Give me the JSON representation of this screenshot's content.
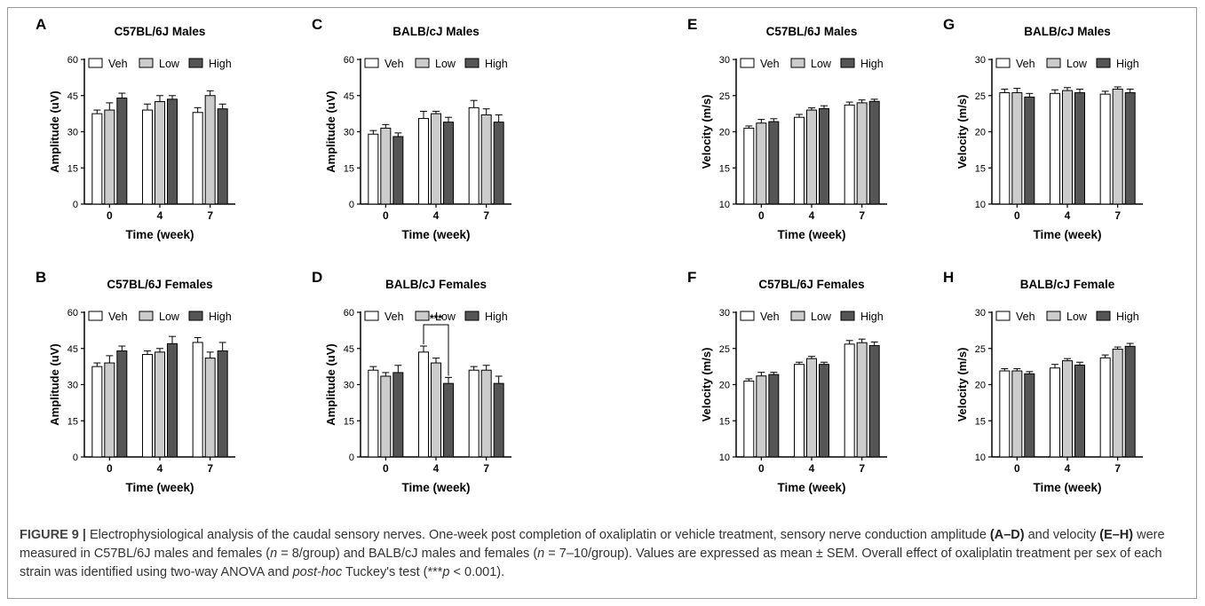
{
  "caption": {
    "label": "FIGURE 9 |",
    "text_1": " Electrophysiological analysis of the caudal sensory nerves. One-week post completion of oxaliplatin or vehicle treatment, sensory nerve conduction amplitude ",
    "range_1": "(A–D)",
    "text_2": " and velocity ",
    "range_2": "(E–H)",
    "text_3": " were measured in C57BL/6J males and females (",
    "n_1": "n",
    "text_4": " = 8/group) and BALB/cJ males and females (",
    "n_2": "n",
    "text_5": " = 7–10/group). Values are expressed as mean ± SEM. Overall effect of oxaliplatin treatment per sex of each strain was identified using two-way ANOVA and ",
    "posthoc": "post-hoc",
    "text_6": " Tuckey's test (***",
    "p": "p",
    "text_7": " < 0.001)."
  },
  "colors": {
    "Veh": "#ffffff",
    "Low": "#cccccc",
    "High": "#555555",
    "axis": "#000000"
  },
  "chart_data": [
    {
      "panel": "A",
      "type": "bar",
      "title": "C57BL/6J Males",
      "ylabel": "Amplitude (uV)",
      "xlabel": "Time (week)",
      "categories": [
        "0",
        "4",
        "7"
      ],
      "ylim": [
        0,
        60
      ],
      "yticks": [
        0,
        15,
        30,
        45,
        60
      ],
      "legend": "top",
      "series": [
        {
          "name": "Veh",
          "values": [
            37.5,
            39.0,
            38.0
          ],
          "errors": [
            1.5,
            2.5,
            2.0
          ]
        },
        {
          "name": "Low",
          "values": [
            39.0,
            42.5,
            45.0
          ],
          "errors": [
            3.0,
            2.5,
            2.0
          ]
        },
        {
          "name": "High",
          "values": [
            44.0,
            43.5,
            39.5
          ],
          "errors": [
            2.0,
            1.5,
            2.0
          ]
        }
      ]
    },
    {
      "panel": "B",
      "type": "bar",
      "title": "C57BL/6J Females",
      "ylabel": "Amplitude (uV)",
      "xlabel": "Time (week)",
      "categories": [
        "0",
        "4",
        "7"
      ],
      "ylim": [
        0,
        60
      ],
      "yticks": [
        0,
        15,
        30,
        45,
        60
      ],
      "legend": "top",
      "series": [
        {
          "name": "Veh",
          "values": [
            37.5,
            42.5,
            47.5
          ],
          "errors": [
            1.5,
            1.5,
            2.0
          ]
        },
        {
          "name": "Low",
          "values": [
            39.0,
            43.5,
            41.0
          ],
          "errors": [
            3.0,
            1.5,
            2.5
          ]
        },
        {
          "name": "High",
          "values": [
            44.0,
            47.0,
            44.0
          ],
          "errors": [
            2.0,
            3.0,
            3.5
          ]
        }
      ]
    },
    {
      "panel": "C",
      "type": "bar",
      "title": "BALB/cJ Males",
      "ylabel": "Amplitude (uV)",
      "xlabel": "Time (week)",
      "categories": [
        "0",
        "4",
        "7"
      ],
      "ylim": [
        0,
        60
      ],
      "yticks": [
        0,
        15,
        30,
        45,
        60
      ],
      "legend": "top",
      "series": [
        {
          "name": "Veh",
          "values": [
            29.0,
            35.5,
            40.0
          ],
          "errors": [
            1.5,
            3.0,
            3.0
          ]
        },
        {
          "name": "Low",
          "values": [
            31.5,
            37.5,
            37.0
          ],
          "errors": [
            1.5,
            1.0,
            2.5
          ]
        },
        {
          "name": "High",
          "values": [
            28.0,
            34.0,
            34.0
          ],
          "errors": [
            1.5,
            2.0,
            3.0
          ]
        }
      ]
    },
    {
      "panel": "D",
      "type": "bar",
      "title": "BALB/cJ Females",
      "ylabel": "Amplitude (uV)",
      "xlabel": "Time (week)",
      "categories": [
        "0",
        "4",
        "7"
      ],
      "ylim": [
        0,
        60
      ],
      "yticks": [
        0,
        15,
        30,
        45,
        60
      ],
      "legend": "top",
      "significance": {
        "label": "***",
        "category": "4",
        "from": "Veh",
        "to": "High"
      },
      "series": [
        {
          "name": "Veh",
          "values": [
            36.0,
            43.5,
            36.0
          ],
          "errors": [
            1.5,
            2.5,
            1.5
          ]
        },
        {
          "name": "Low",
          "values": [
            33.5,
            39.0,
            36.0
          ],
          "errors": [
            1.5,
            2.0,
            2.0
          ]
        },
        {
          "name": "High",
          "values": [
            35.0,
            30.5,
            30.5
          ],
          "errors": [
            3.0,
            2.5,
            3.0
          ]
        }
      ]
    },
    {
      "panel": "E",
      "type": "bar",
      "title": "C57BL/6J Males",
      "ylabel": "Velocity (m/s)",
      "xlabel": "Time (week)",
      "categories": [
        "0",
        "4",
        "7"
      ],
      "ylim": [
        10,
        30
      ],
      "yticks": [
        10,
        15,
        20,
        25,
        30
      ],
      "legend": "top",
      "series": [
        {
          "name": "Veh",
          "values": [
            20.5,
            22.0,
            23.7
          ],
          "errors": [
            0.3,
            0.4,
            0.4
          ]
        },
        {
          "name": "Low",
          "values": [
            21.2,
            23.0,
            24.0
          ],
          "errors": [
            0.5,
            0.3,
            0.4
          ]
        },
        {
          "name": "High",
          "values": [
            21.4,
            23.2,
            24.2
          ],
          "errors": [
            0.4,
            0.4,
            0.3
          ]
        }
      ]
    },
    {
      "panel": "F",
      "type": "bar",
      "title": "C57BL/6J Females",
      "ylabel": "Velocity (m/s)",
      "xlabel": "Time (week)",
      "categories": [
        "0",
        "4",
        "7"
      ],
      "ylim": [
        10,
        30
      ],
      "yticks": [
        10,
        15,
        20,
        25,
        30
      ],
      "legend": "top",
      "series": [
        {
          "name": "Veh",
          "values": [
            20.5,
            22.8,
            25.6
          ],
          "errors": [
            0.3,
            0.3,
            0.5
          ]
        },
        {
          "name": "Low",
          "values": [
            21.2,
            23.6,
            25.8
          ],
          "errors": [
            0.5,
            0.3,
            0.5
          ]
        },
        {
          "name": "High",
          "values": [
            21.4,
            22.8,
            25.4
          ],
          "errors": [
            0.3,
            0.3,
            0.5
          ]
        }
      ]
    },
    {
      "panel": "G",
      "type": "bar",
      "title": "BALB/cJ Males",
      "ylabel": "Velocity (m/s)",
      "xlabel": "Time (week)",
      "categories": [
        "0",
        "4",
        "7"
      ],
      "ylim": [
        10,
        30
      ],
      "yticks": [
        10,
        15,
        20,
        25,
        30
      ],
      "legend": "top",
      "series": [
        {
          "name": "Veh",
          "values": [
            25.4,
            25.3,
            25.2
          ],
          "errors": [
            0.5,
            0.5,
            0.4
          ]
        },
        {
          "name": "Low",
          "values": [
            25.4,
            25.7,
            25.9
          ],
          "errors": [
            0.6,
            0.4,
            0.3
          ]
        },
        {
          "name": "High",
          "values": [
            24.8,
            25.4,
            25.4
          ],
          "errors": [
            0.5,
            0.5,
            0.5
          ]
        }
      ]
    },
    {
      "panel": "H",
      "type": "bar",
      "title": "BALB/cJ Female",
      "ylabel": "Velocity (m/s)",
      "xlabel": "Time (week)",
      "categories": [
        "0",
        "4",
        "7"
      ],
      "ylim": [
        10,
        30
      ],
      "yticks": [
        10,
        15,
        20,
        25,
        30
      ],
      "legend": "top",
      "series": [
        {
          "name": "Veh",
          "values": [
            21.9,
            22.3,
            23.7
          ],
          "errors": [
            0.3,
            0.5,
            0.4
          ]
        },
        {
          "name": "Low",
          "values": [
            21.9,
            23.3,
            24.9
          ],
          "errors": [
            0.3,
            0.3,
            0.3
          ]
        },
        {
          "name": "High",
          "values": [
            21.5,
            22.7,
            25.3
          ],
          "errors": [
            0.3,
            0.4,
            0.4
          ]
        }
      ]
    }
  ]
}
